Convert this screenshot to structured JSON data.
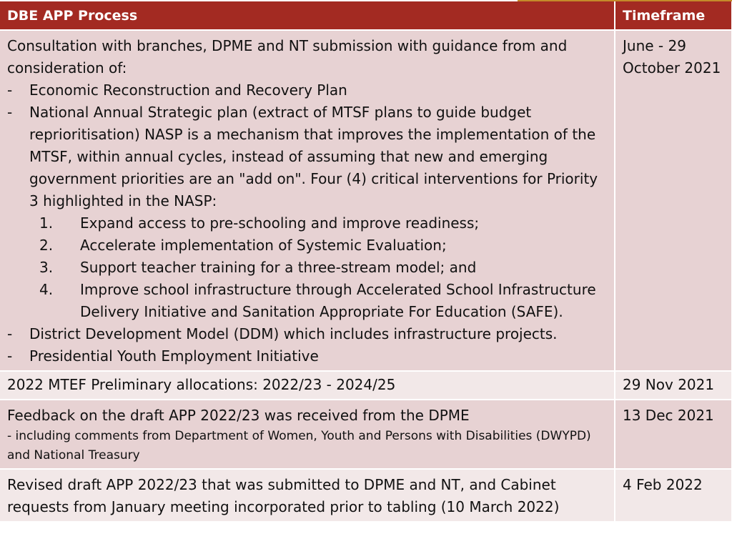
{
  "header": {
    "process": "DBE APP Process",
    "timeframe": "Timeframe"
  },
  "rows": [
    {
      "intro": "Consultation with branches, DPME and NT submission with guidance from and consideration of:",
      "items": [
        {
          "bullet": "-",
          "text": "Economic Reconstruction and Recovery Plan"
        },
        {
          "bullet": "-",
          "text": "National Annual Strategic plan (extract of MTSF plans to guide budget reprioritisation) NASP is a mechanism that improves the implementation of the MTSF, within annual cycles, instead of assuming that new and emerging government priorities are an \"add on\". Four (4) critical interventions for Priority 3 highlighted in the NASP:"
        }
      ],
      "numbered": [
        {
          "num": "1.",
          "text": "Expand access to pre-schooling and improve readiness;"
        },
        {
          "num": "2.",
          "text": "Accelerate implementation of Systemic Evaluation;"
        },
        {
          "num": "3.",
          "text": "Support teacher training for a three-stream model; and"
        },
        {
          "num": "4.",
          "text": "Improve school infrastructure through Accelerated School Infrastructure Delivery Initiative and Sanitation Appropriate For Education (SAFE)."
        }
      ],
      "items_after": [
        {
          "bullet": "-",
          "text": "District Development Model (DDM) which includes infrastructure projects."
        },
        {
          "bullet": "-",
          "text": "Presidential Youth Employment Initiative"
        }
      ],
      "timeframe": "June - 29 October 2021"
    },
    {
      "process": "2022 MTEF Preliminary allocations: 2022/23 - 2024/25",
      "timeframe": "29 Nov 2021"
    },
    {
      "process": "Feedback on the draft APP 2022/23 was received from the DPME",
      "sub": "- including comments from Department of Women, Youth and Persons with Disabilities (DWYPD) and National Treasury",
      "timeframe": "13 Dec 2021"
    },
    {
      "process": "Revised draft APP 2022/23 that was submitted to DPME and NT, and Cabinet requests from January meeting incorporated prior to tabling (10 March 2022)",
      "timeframe": "4 Feb 2022"
    }
  ],
  "colors": {
    "header_bg": "#a32a22",
    "row_dark": "#e7d2d3",
    "row_light": "#f2e8e8",
    "accent": "#c48a2a"
  }
}
